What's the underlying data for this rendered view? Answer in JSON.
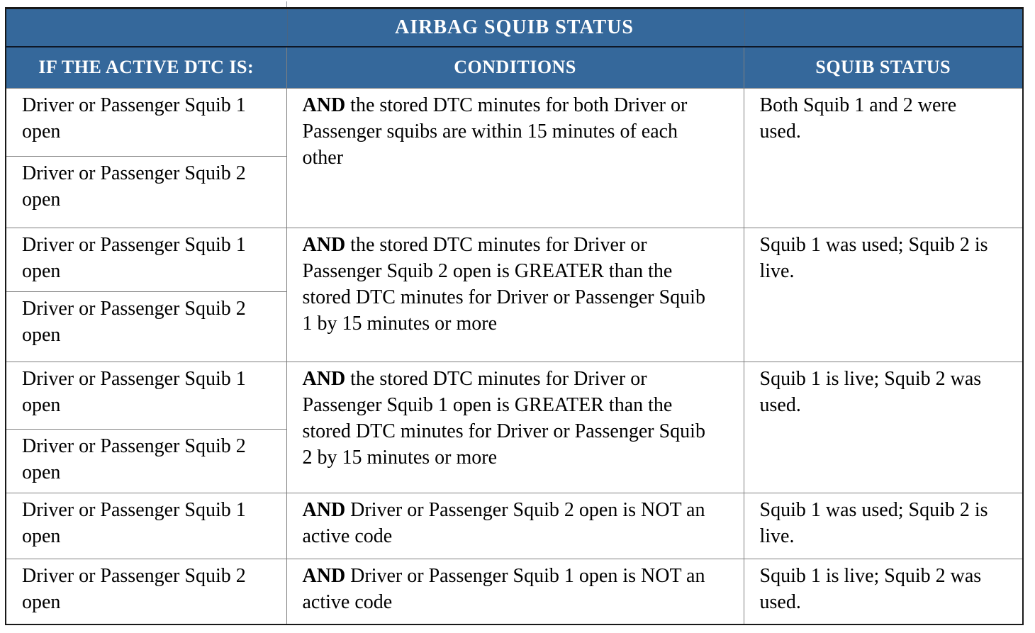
{
  "colors": {
    "header_bg": "#35689B",
    "header_text": "#ffffff",
    "body_text": "#000000",
    "grid_line": "#7f7f7f",
    "outer_border": "#181818",
    "title_divider": "#0e1726"
  },
  "table": {
    "title": "AIRBAG SQUIB STATUS",
    "columns": [
      "IF THE ACTIVE DTC IS:",
      "CONDITIONS",
      "SQUIB STATUS"
    ],
    "rows": [
      {
        "dtc": [
          "Driver or Passenger Squib 1 open",
          "Driver or Passenger Squib 2 open"
        ],
        "and": "AND",
        "condition": " the stored DTC minutes for both Driver or Passenger squibs are within 15 minutes of each other",
        "status": "Both Squib 1 and 2 were used."
      },
      {
        "dtc": [
          "Driver or Passenger Squib 1 open",
          "Driver or Passenger Squib 2 open"
        ],
        "and": "AND",
        "condition": " the stored DTC minutes for Driver or Passenger Squib 2 open is GREATER than the stored DTC minutes for Driver or Passenger Squib 1 by 15 minutes or more",
        "status": "Squib 1 was used; Squib 2 is live."
      },
      {
        "dtc": [
          "Driver or Passenger Squib 1 open",
          "Driver or Passenger Squib 2 open"
        ],
        "and": "AND",
        "condition": " the stored DTC minutes for Driver or Passenger Squib 1 open is GREATER than the stored DTC minutes for Driver or Passenger Squib 2 by 15 minutes or more",
        "status": "Squib 1 is live; Squib 2 was used."
      },
      {
        "dtc": [
          "Driver or Passenger Squib 1 open"
        ],
        "and": "AND",
        "condition": " Driver or Passenger Squib 2 open is NOT an active code",
        "status": "Squib 1 was used; Squib 2 is live."
      },
      {
        "dtc": [
          "Driver or Passenger Squib 2 open"
        ],
        "and": "AND",
        "condition": " Driver or Passenger Squib 1 open is NOT an active code",
        "status": "Squib 1 is live; Squib 2 was used."
      }
    ]
  }
}
